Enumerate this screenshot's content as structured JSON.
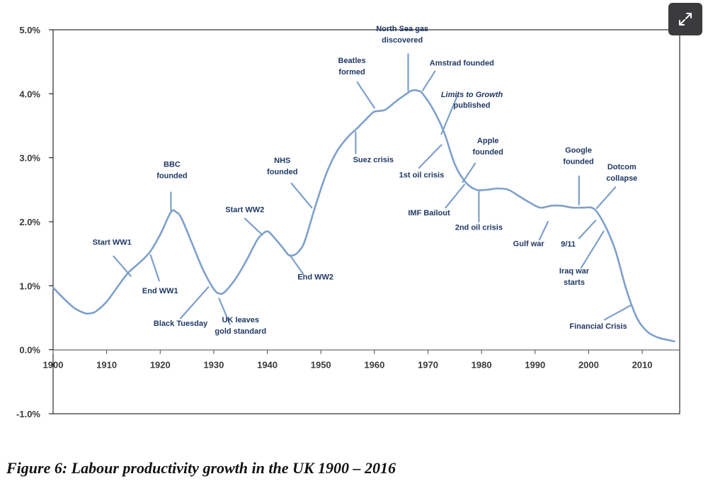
{
  "expand_icon": "expand-arrows-icon",
  "caption": "Figure 6: Labour productivity growth in the UK 1900 – 2016",
  "chart_data": {
    "type": "line",
    "title": "",
    "xlabel": "",
    "ylabel": "",
    "xlim": [
      1900,
      2017
    ],
    "ylim": [
      -1.0,
      5.0
    ],
    "grid": false,
    "legend": "none",
    "line_color": "#7da0cc",
    "annotation_color": "#1f3864",
    "x_ticks": [
      1900,
      1910,
      1920,
      1930,
      1940,
      1950,
      1960,
      1970,
      1980,
      1990,
      2000,
      2010
    ],
    "x_tick_labels": [
      "1900",
      "1910",
      "1920",
      "1930",
      "1940",
      "1950",
      "1960",
      "1970",
      "1980",
      "1990",
      "2000",
      "2010"
    ],
    "y_ticks": [
      -1,
      0,
      1,
      2,
      3,
      4,
      5
    ],
    "y_tick_labels": [
      "-1.0%",
      "0.0%",
      "1.0%",
      "2.0%",
      "3.0%",
      "4.0%",
      "5.0%"
    ],
    "series": [
      {
        "x": [
          1900,
          1902,
          1904,
          1906,
          1907,
          1908,
          1910,
          1912,
          1914,
          1916,
          1918,
          1920,
          1922,
          1923,
          1924,
          1926,
          1928,
          1930,
          1931,
          1932,
          1934,
          1936,
          1938,
          1939,
          1940,
          1941,
          1943,
          1944,
          1945,
          1946,
          1947,
          1949,
          1951,
          1953,
          1955,
          1957,
          1959,
          1960,
          1962,
          1964,
          1966,
          1967,
          1968,
          1969,
          1971,
          1973,
          1975,
          1977,
          1979,
          1981,
          1983,
          1985,
          1987,
          1989,
          1991,
          1993,
          1995,
          1997,
          1999,
          2001,
          2003,
          2005,
          2007,
          2009,
          2011,
          2013,
          2015,
          2016
        ],
        "values": [
          0.97,
          0.8,
          0.65,
          0.57,
          0.57,
          0.6,
          0.75,
          0.98,
          1.2,
          1.35,
          1.52,
          1.8,
          2.15,
          2.15,
          2.05,
          1.65,
          1.25,
          0.95,
          0.88,
          0.9,
          1.1,
          1.38,
          1.7,
          1.8,
          1.85,
          1.78,
          1.58,
          1.48,
          1.48,
          1.55,
          1.7,
          2.25,
          2.75,
          3.1,
          3.32,
          3.48,
          3.65,
          3.72,
          3.75,
          3.88,
          4.0,
          4.05,
          4.05,
          4.0,
          3.75,
          3.4,
          2.9,
          2.62,
          2.5,
          2.5,
          2.52,
          2.5,
          2.4,
          2.3,
          2.22,
          2.25,
          2.25,
          2.22,
          2.22,
          2.2,
          1.95,
          1.55,
          0.95,
          0.5,
          0.28,
          0.19,
          0.15,
          0.13
        ]
      }
    ],
    "annotations": [
      {
        "text": [
          "Start WW1"
        ],
        "italic": false,
        "anchor": "middle",
        "label_at": [
          1911.0,
          1.64
        ],
        "line_from": [
          1911.3,
          1.46
        ],
        "line_to": [
          1914.5,
          1.15
        ]
      },
      {
        "text": [
          "End WW1"
        ],
        "italic": false,
        "anchor": "middle",
        "label_at": [
          1920.0,
          0.88
        ],
        "line_from": [
          1918.2,
          1.48
        ],
        "line_to": [
          1919.8,
          1.08
        ]
      },
      {
        "text": [
          "BBC",
          "founded"
        ],
        "italic": false,
        "anchor": "middle",
        "label_at": [
          1922.2,
          2.86
        ],
        "line_from": [
          1922.0,
          2.46
        ],
        "line_to": [
          1922.0,
          2.18
        ]
      },
      {
        "text": [
          "Black Tuesday"
        ],
        "italic": false,
        "anchor": "middle",
        "label_at": [
          1923.8,
          0.37
        ],
        "line_from": [
          1923.8,
          0.49
        ],
        "line_to": [
          1929.0,
          0.98
        ]
      },
      {
        "text": [
          "UK leaves",
          "gold standard"
        ],
        "italic": false,
        "anchor": "middle",
        "label_at": [
          1935.0,
          0.43
        ],
        "line_from": [
          1933.0,
          0.4
        ],
        "line_to": [
          1931.0,
          0.8
        ]
      },
      {
        "text": [
          "Start WW2"
        ],
        "italic": false,
        "anchor": "middle",
        "label_at": [
          1935.8,
          2.15
        ],
        "line_from": [
          1935.8,
          2.05
        ],
        "line_to": [
          1939.0,
          1.8
        ]
      },
      {
        "text": [
          "NHS",
          "founded"
        ],
        "italic": false,
        "anchor": "middle",
        "label_at": [
          1942.8,
          2.92
        ],
        "line_from": [
          1944.5,
          2.6
        ],
        "line_to": [
          1948.3,
          2.22
        ]
      },
      {
        "text": [
          "End WW2"
        ],
        "italic": false,
        "anchor": "middle",
        "label_at": [
          1949.0,
          1.1
        ],
        "line_from": [
          1946.8,
          1.17
        ],
        "line_to": [
          1944.2,
          1.48
        ]
      },
      {
        "text": [
          "Beatles",
          "formed"
        ],
        "italic": false,
        "anchor": "middle",
        "label_at": [
          1955.8,
          4.48
        ],
        "line_from": [
          1956.8,
          4.18
        ],
        "line_to": [
          1960.0,
          3.78
        ]
      },
      {
        "text": [
          "Suez crisis"
        ],
        "italic": false,
        "anchor": "middle",
        "label_at": [
          1959.8,
          2.93
        ],
        "line_from": [
          1956.5,
          3.07
        ],
        "line_to": [
          1956.5,
          3.4
        ]
      },
      {
        "text": [
          "North Sea gas",
          "discovered"
        ],
        "italic": false,
        "anchor": "middle",
        "label_at": [
          1965.2,
          4.98
        ],
        "line_from": [
          1966.3,
          4.62
        ],
        "line_to": [
          1966.3,
          4.05
        ]
      },
      {
        "text": [
          "Amstrad founded"
        ],
        "italic": false,
        "anchor": "start",
        "label_at": [
          1970.3,
          4.44
        ],
        "line_from": [
          1971.3,
          4.35
        ],
        "line_to": [
          1969.0,
          4.05
        ]
      },
      {
        "text": [
          "Limits to Growth"
        ],
        "italic": true,
        "anchor": "middle",
        "label_at": [
          1978.2,
          3.95
        ],
        "line_from": [
          1975.5,
          3.97
        ],
        "line_to": [
          1972.5,
          3.37
        ]
      },
      {
        "text": [
          "published"
        ],
        "italic": false,
        "anchor": "middle",
        "label_at": [
          1978.2,
          3.78
        ],
        "line_from": null,
        "line_to": null
      },
      {
        "text": [
          "1st oil crisis"
        ],
        "italic": false,
        "anchor": "middle",
        "label_at": [
          1968.8,
          2.69
        ],
        "line_from": [
          1968.3,
          2.84
        ],
        "line_to": [
          1972.5,
          3.2
        ]
      },
      {
        "text": [
          "Apple",
          "founded"
        ],
        "italic": false,
        "anchor": "middle",
        "label_at": [
          1981.2,
          3.23
        ],
        "line_from": [
          1978.8,
          2.91
        ],
        "line_to": [
          1976.5,
          2.62
        ]
      },
      {
        "text": [
          "IMF Bailout"
        ],
        "italic": false,
        "anchor": "middle",
        "label_at": [
          1970.2,
          2.1
        ],
        "line_from": [
          1973.3,
          2.22
        ],
        "line_to": [
          1976.8,
          2.58
        ]
      },
      {
        "text": [
          "2nd oil crisis"
        ],
        "italic": false,
        "anchor": "middle",
        "label_at": [
          1979.5,
          1.87
        ],
        "line_from": [
          1979.5,
          2.0
        ],
        "line_to": [
          1979.5,
          2.47
        ]
      },
      {
        "text": [
          "Gulf war"
        ],
        "italic": false,
        "anchor": "middle",
        "label_at": [
          1988.8,
          1.62
        ],
        "line_from": [
          1990.8,
          1.72
        ],
        "line_to": [
          1992.4,
          2.0
        ]
      },
      {
        "text": [
          "Google",
          "founded"
        ],
        "italic": false,
        "anchor": "middle",
        "label_at": [
          1998.1,
          3.08
        ],
        "line_from": [
          1998.2,
          2.71
        ],
        "line_to": [
          1998.2,
          2.27
        ]
      },
      {
        "text": [
          "Dotcom",
          "collapse"
        ],
        "italic": false,
        "anchor": "middle",
        "label_at": [
          2006.2,
          2.82
        ],
        "line_from": [
          2005.0,
          2.54
        ],
        "line_to": [
          2001.5,
          2.21
        ]
      },
      {
        "text": [
          "9/11"
        ],
        "italic": false,
        "anchor": "middle",
        "label_at": [
          1996.2,
          1.61
        ],
        "line_from": [
          1998.2,
          1.74
        ],
        "line_to": [
          2001.3,
          2.02
        ]
      },
      {
        "text": [
          "Iraq war",
          "starts"
        ],
        "italic": false,
        "anchor": "middle",
        "label_at": [
          1997.3,
          1.19
        ],
        "line_from": [
          1998.6,
          1.28
        ],
        "line_to": [
          2002.8,
          1.85
        ]
      },
      {
        "text": [
          "Financial Crisis"
        ],
        "italic": false,
        "anchor": "middle",
        "label_at": [
          2001.8,
          0.33
        ],
        "line_from": [
          2003.0,
          0.47
        ],
        "line_to": [
          2008.0,
          0.7
        ]
      }
    ]
  }
}
